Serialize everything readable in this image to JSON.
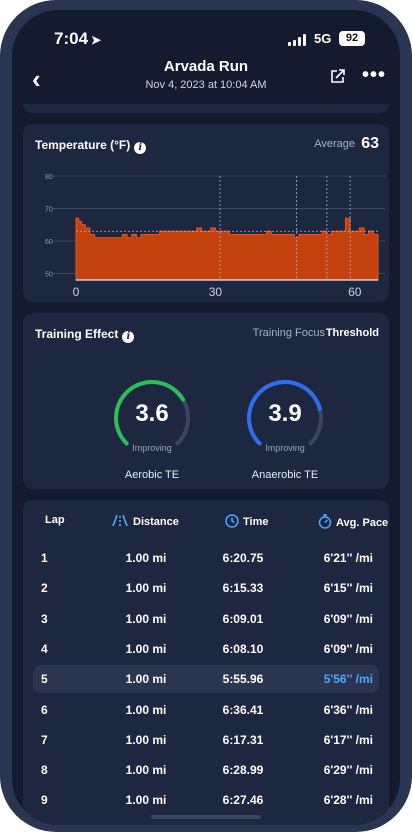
{
  "status_bar": {
    "time": "7:04",
    "network": "5G",
    "battery": "92"
  },
  "header": {
    "title": "Arvada Run",
    "subtitle": "Nov 4, 2023 at 10:04 AM",
    "back_icon": "chevron-left-icon",
    "share_icon": "share-icon",
    "more_icon": "more-icon"
  },
  "temperature": {
    "title": "Temperature (°F)",
    "average_label": "Average",
    "average_value": "63"
  },
  "chart_data": {
    "type": "area",
    "title": "Temperature (°F)",
    "x_ticks": [
      "0",
      "30",
      "60"
    ],
    "y_ticks": [
      "80",
      "70",
      "60",
      "50"
    ],
    "xlim": [
      0,
      65
    ],
    "ylim": [
      48,
      80
    ],
    "average": 63,
    "grid": true,
    "lap_marker_x": [
      31,
      47.5,
      54,
      59
    ],
    "x": [
      0,
      0.6,
      1.2,
      2,
      3,
      4,
      5,
      6,
      7,
      8,
      9,
      10,
      11,
      12,
      13,
      14,
      15,
      16,
      17,
      18,
      19,
      20,
      21,
      22,
      23,
      24,
      25,
      26,
      27,
      28,
      29,
      30,
      31,
      32,
      33,
      34,
      35,
      36,
      37,
      38,
      39,
      40,
      41,
      42,
      43,
      44,
      45,
      46,
      47,
      48,
      49,
      50,
      51,
      52,
      53,
      54,
      55,
      56,
      57,
      58,
      59,
      60,
      61,
      62,
      63,
      64,
      65
    ],
    "values": [
      67,
      66,
      65,
      64,
      62,
      61,
      61,
      61,
      61,
      61,
      61,
      62,
      61,
      62,
      61,
      62,
      62,
      62,
      62,
      63,
      63,
      63,
      63,
      63,
      63,
      63,
      63,
      64,
      63,
      63,
      64,
      63,
      63,
      63,
      62,
      62,
      62,
      62,
      62,
      62,
      62,
      62,
      63,
      62,
      62,
      62,
      62,
      62,
      61,
      62,
      62,
      62,
      62,
      62,
      63,
      62,
      63,
      63,
      63,
      67,
      63,
      63,
      64,
      62,
      63,
      62,
      62
    ]
  },
  "training_effect": {
    "title": "Training Effect",
    "focus_label": "Training Focus",
    "focus_value": "Threshold",
    "aerobic": {
      "value": "3.6",
      "value_num": 3.6,
      "status": "Improving",
      "label": "Aerobic TE",
      "color": "#2dbd5a"
    },
    "anaerobic": {
      "value": "3.9",
      "value_num": 3.9,
      "status": "Improving",
      "label": "Anaerobic TE",
      "color": "#2f6df0"
    },
    "max": 5
  },
  "laps": {
    "columns": {
      "lap": "Lap",
      "distance": "Distance",
      "time": "Time",
      "pace": "Avg. Pace"
    },
    "rows": [
      {
        "lap": "1",
        "distance": "1.00 mi",
        "time": "6:20.75",
        "pace": "6'21'' /mi"
      },
      {
        "lap": "2",
        "distance": "1.00 mi",
        "time": "6:15.33",
        "pace": "6'15'' /mi"
      },
      {
        "lap": "3",
        "distance": "1.00 mi",
        "time": "6:09.01",
        "pace": "6'09'' /mi"
      },
      {
        "lap": "4",
        "distance": "1.00 mi",
        "time": "6:08.10",
        "pace": "6'09'' /mi"
      },
      {
        "lap": "5",
        "distance": "1.00 mi",
        "time": "5:55.96",
        "pace": "5'56'' /mi"
      },
      {
        "lap": "6",
        "distance": "1.00 mi",
        "time": "6:36.41",
        "pace": "6'36'' /mi"
      },
      {
        "lap": "7",
        "distance": "1.00 mi",
        "time": "6:17.31",
        "pace": "6'17'' /mi"
      },
      {
        "lap": "8",
        "distance": "1.00 mi",
        "time": "6:28.99",
        "pace": "6'29'' /mi"
      },
      {
        "lap": "9",
        "distance": "1.00 mi",
        "time": "6:27.46",
        "pace": "6'28'' /mi"
      }
    ],
    "highlight_row": "5"
  }
}
